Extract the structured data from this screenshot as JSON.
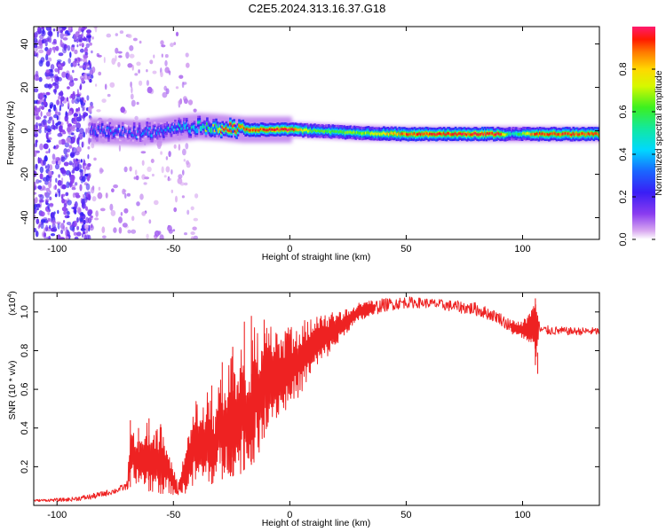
{
  "title": "C2E5.2024.313.16.37.G18",
  "chart_data": [
    {
      "type": "heatmap",
      "xlabel": "Height of straight line (km)",
      "ylabel": "Frequency (Hz)",
      "xlim": [
        -110,
        133
      ],
      "ylim": [
        -50,
        48
      ],
      "xticks": [
        -100,
        -50,
        0,
        50,
        100
      ],
      "yticks": [
        -40,
        -20,
        0,
        20,
        40
      ],
      "xtick_labels": [
        "-100",
        "-50",
        "0",
        "50",
        "100"
      ],
      "ytick_labels": [
        "-40",
        "-20",
        "0",
        "20",
        "40"
      ],
      "colorbar": {
        "label": "Normalized spectral amplitude",
        "range": [
          0,
          1
        ],
        "ticks": [
          0.0,
          0.2,
          0.4,
          0.6,
          0.8
        ],
        "tick_labels": [
          "0.0",
          "0.2",
          "0.4",
          "0.6",
          "0.8"
        ],
        "colormap": "rainbow (magenta-purple-blue-cyan-green-yellow-red)"
      },
      "ridge": [
        {
          "x": -85,
          "freq": 0,
          "amplitude": 0.3
        },
        {
          "x": -65,
          "freq": -1,
          "amplitude": 0.35
        },
        {
          "x": -50,
          "freq": 1,
          "amplitude": 0.45
        },
        {
          "x": -40,
          "freq": 2,
          "amplitude": 0.55
        },
        {
          "x": -30,
          "freq": 1.5,
          "amplitude": 0.95
        },
        {
          "x": -20,
          "freq": 0.5,
          "amplitude": 0.9
        },
        {
          "x": 0,
          "freq": 0.5,
          "amplitude": 0.95
        },
        {
          "x": 10,
          "freq": 0,
          "amplitude": 0.6
        },
        {
          "x": 30,
          "freq": -1,
          "amplitude": 0.65
        },
        {
          "x": 50,
          "freq": -1.5,
          "amplitude": 0.9
        },
        {
          "x": 90,
          "freq": -1.5,
          "amplitude": 0.95
        },
        {
          "x": 95,
          "freq": -1.5,
          "amplitude": 0.45
        },
        {
          "x": 105,
          "freq": -1.5,
          "amplitude": 0.9
        },
        {
          "x": 133,
          "freq": -1.5,
          "amplitude": 0.9
        }
      ]
    },
    {
      "type": "line",
      "xlabel": "Height of straight line (km)",
      "ylabel": "SNR (10 * v/v)",
      "y_scale_note": "(x10",
      "y_scale_exp": "4",
      "y_scale_close": ")",
      "xlim": [
        -110,
        133
      ],
      "ylim": [
        0,
        1.1
      ],
      "xticks": [
        -100,
        -50,
        0,
        50,
        100
      ],
      "yticks": [
        0.2,
        0.4,
        0.6,
        0.8,
        1.0
      ],
      "xtick_labels": [
        "-100",
        "-50",
        "0",
        "50",
        "100"
      ],
      "ytick_labels": [
        "0.2",
        "0.4",
        "0.6",
        "0.8",
        "1.0"
      ],
      "color": "#ee2222",
      "envelope": {
        "x": [
          -110,
          -95,
          -85,
          -75,
          -70,
          -68,
          -65,
          -62,
          -58,
          -55,
          -52,
          -48,
          -45,
          -40,
          -38,
          -35,
          -32,
          -30,
          -28,
          -25,
          -22,
          -20,
          -18,
          -15,
          -12,
          -10,
          -5,
          0,
          5,
          10,
          15,
          20,
          25,
          30,
          40,
          50,
          60,
          70,
          80,
          90,
          95,
          100,
          104,
          106,
          107,
          108,
          110,
          120,
          133
        ],
        "lo": [
          0.02,
          0.02,
          0.03,
          0.06,
          0.08,
          0.1,
          0.12,
          0.08,
          0.06,
          0.06,
          0.06,
          0.05,
          0.06,
          0.1,
          0.1,
          0.1,
          0.12,
          0.12,
          0.15,
          0.15,
          0.15,
          0.18,
          0.2,
          0.22,
          0.3,
          0.4,
          0.45,
          0.5,
          0.58,
          0.68,
          0.75,
          0.82,
          0.9,
          0.95,
          1.0,
          1.02,
          1.02,
          1.0,
          0.98,
          0.94,
          0.88,
          0.86,
          0.8,
          0.7,
          0.88,
          0.88,
          0.88,
          0.88,
          0.88
        ],
        "hi": [
          0.03,
          0.04,
          0.06,
          0.09,
          0.12,
          0.44,
          0.32,
          0.45,
          0.38,
          0.42,
          0.28,
          0.12,
          0.28,
          0.58,
          0.5,
          0.6,
          0.45,
          0.72,
          0.62,
          0.82,
          0.65,
          0.94,
          0.62,
          0.98,
          0.8,
          0.95,
          0.9,
          0.92,
          0.95,
          0.98,
          1.0,
          1.0,
          1.02,
          1.05,
          1.07,
          1.08,
          1.07,
          1.06,
          1.05,
          1.0,
          0.96,
          0.95,
          1.02,
          1.06,
          0.96,
          0.93,
          0.93,
          0.92,
          0.92
        ]
      },
      "spikes": [
        {
          "x": -68.5,
          "y": 0.44
        },
        {
          "x": -65,
          "y": 0.4
        },
        {
          "x": -60.5,
          "y": 0.45
        },
        {
          "x": -55.5,
          "y": 0.42
        },
        {
          "x": -33.5,
          "y": 0.62
        },
        {
          "x": -29,
          "y": 0.74
        },
        {
          "x": -24.5,
          "y": 0.82
        },
        {
          "x": -19.5,
          "y": 0.95
        },
        {
          "x": -16.5,
          "y": 0.98
        },
        {
          "x": -11,
          "y": 0.96
        },
        {
          "x": 105.5,
          "y": 1.07
        },
        {
          "x": 106.5,
          "y": 0.68
        }
      ]
    }
  ]
}
